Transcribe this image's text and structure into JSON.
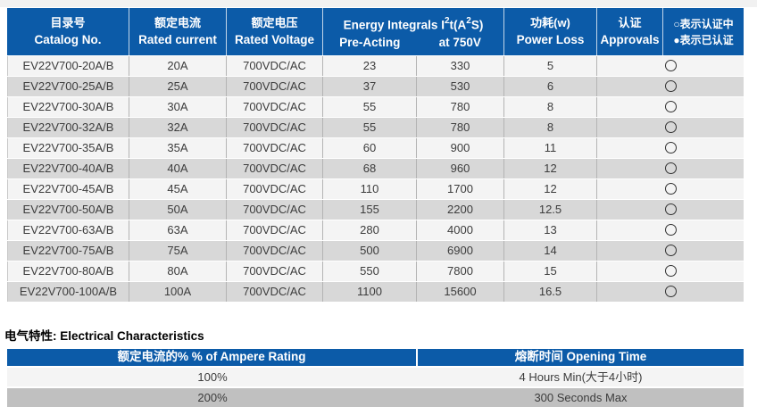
{
  "colors": {
    "header_blue": "#0c5ba8",
    "row_light": "#f4f4f4",
    "row_gray": "#d8d8d8",
    "bottom_row_gray": "#c0c0c0",
    "body_text": "#3c3c3c"
  },
  "main_table": {
    "header": {
      "catalog_cn": "目录号",
      "catalog_en": "Catalog No.",
      "current_cn": "额定电流",
      "current_en": "Rated current",
      "voltage_cn": "额定电压",
      "voltage_en": "Rated Voltage",
      "energy_title_parts": {
        "p1": "Energy Integrals I",
        "sup1": "2",
        "p2": "t(A",
        "sup2": "2",
        "p3": "S)"
      },
      "energy_sub_left": "Pre-Acting",
      "energy_sub_right": "at 750V",
      "power_cn": "功耗(w)",
      "power_en": "Power Loss",
      "approvals_cn": "认证",
      "approvals_en": "Approvals",
      "legend_line1": "○表示认证中",
      "legend_line2": "●表示已认证"
    },
    "rows": [
      {
        "catalog": "EV22V700-20A/B",
        "rated_current": "20A",
        "rated_voltage": "700VDC/AC",
        "pre_acting": "23",
        "at_750v": "330",
        "power_loss": "5",
        "approval_status": "pending"
      },
      {
        "catalog": "EV22V700-25A/B",
        "rated_current": "25A",
        "rated_voltage": "700VDC/AC",
        "pre_acting": "37",
        "at_750v": "530",
        "power_loss": "6",
        "approval_status": "pending"
      },
      {
        "catalog": "EV22V700-30A/B",
        "rated_current": "30A",
        "rated_voltage": "700VDC/AC",
        "pre_acting": "55",
        "at_750v": "780",
        "power_loss": "8",
        "approval_status": "pending"
      },
      {
        "catalog": "EV22V700-32A/B",
        "rated_current": "32A",
        "rated_voltage": "700VDC/AC",
        "pre_acting": "55",
        "at_750v": "780",
        "power_loss": "8",
        "approval_status": "pending"
      },
      {
        "catalog": "EV22V700-35A/B",
        "rated_current": "35A",
        "rated_voltage": "700VDC/AC",
        "pre_acting": "60",
        "at_750v": "900",
        "power_loss": "11",
        "approval_status": "pending"
      },
      {
        "catalog": "EV22V700-40A/B",
        "rated_current": "40A",
        "rated_voltage": "700VDC/AC",
        "pre_acting": "68",
        "at_750v": "960",
        "power_loss": "12",
        "approval_status": "pending"
      },
      {
        "catalog": "EV22V700-45A/B",
        "rated_current": "45A",
        "rated_voltage": "700VDC/AC",
        "pre_acting": "110",
        "at_750v": "1700",
        "power_loss": "12",
        "approval_status": "pending"
      },
      {
        "catalog": "EV22V700-50A/B",
        "rated_current": "50A",
        "rated_voltage": "700VDC/AC",
        "pre_acting": "155",
        "at_750v": "2200",
        "power_loss": "12.5",
        "approval_status": "pending"
      },
      {
        "catalog": "EV22V700-63A/B",
        "rated_current": "63A",
        "rated_voltage": "700VDC/AC",
        "pre_acting": "280",
        "at_750v": "4000",
        "power_loss": "13",
        "approval_status": "pending"
      },
      {
        "catalog": "EV22V700-75A/B",
        "rated_current": "75A",
        "rated_voltage": "700VDC/AC",
        "pre_acting": "500",
        "at_750v": "6900",
        "power_loss": "14",
        "approval_status": "pending"
      },
      {
        "catalog": "EV22V700-80A/B",
        "rated_current": "80A",
        "rated_voltage": "700VDC/AC",
        "pre_acting": "550",
        "at_750v": "7800",
        "power_loss": "15",
        "approval_status": "pending"
      },
      {
        "catalog": "EV22V700-100A/B",
        "rated_current": "100A",
        "rated_voltage": "700VDC/AC",
        "pre_acting": "1100",
        "at_750v": "15600",
        "power_loss": "16.5",
        "approval_status": "pending"
      }
    ]
  },
  "section": {
    "title": "电气特性:  Electrical Characteristics"
  },
  "bottom_table": {
    "header_left": "额定电流的%  % of Ampere Rating",
    "header_right": "熔断时间  Opening Time",
    "rows": [
      {
        "rating": "100%",
        "opening_time": "4 Hours Min(大于4小时)"
      },
      {
        "rating": "200%",
        "opening_time": "300 Seconds Max"
      }
    ]
  }
}
